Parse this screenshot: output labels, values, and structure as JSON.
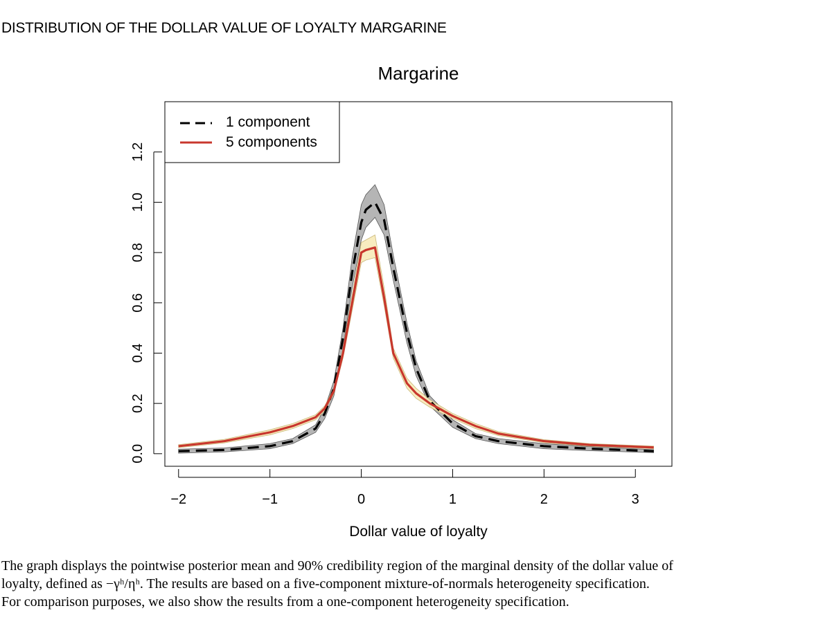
{
  "figure": {
    "heading": "DISTRIBUTION OF THE DOLLAR VALUE OF LOYALTY MARGARINE"
  },
  "caption": {
    "line1": "The graph displays the pointwise posterior mean and 90% credibility region of the marginal density of the dollar value of",
    "line2": "loyalty, defined as −γʰ/ηʰ. The results are based on a five-component mixture-of-normals heterogeneity specification.",
    "line3": "For comparison purposes, we also show the results from a one-component heterogeneity specification."
  },
  "colors": {
    "one_component_line": "#000000",
    "one_component_band": "#a8a8a8",
    "five_component_line": "#c8372d",
    "five_component_band": "#f7eab8"
  },
  "chart_data": {
    "type": "line",
    "title": "Margarine",
    "xlabel": "Dollar value of loyalty",
    "ylabel": "",
    "xlim": [
      -2.15,
      3.4
    ],
    "ylim": [
      -0.05,
      1.4
    ],
    "x_ticks": [
      -2,
      -1,
      0,
      1,
      2,
      3
    ],
    "x_tick_labels": [
      "−2",
      "−1",
      "0",
      "1",
      "2",
      "3"
    ],
    "y_ticks": [
      0.0,
      0.2,
      0.4,
      0.6,
      0.8,
      1.0,
      1.2
    ],
    "y_tick_labels": [
      "0.0",
      "0.2",
      "0.4",
      "0.6",
      "0.8",
      "1.0",
      "1.2"
    ],
    "legend_position": "top-left",
    "grid": false,
    "x": [
      -2.0,
      -1.5,
      -1.0,
      -0.75,
      -0.5,
      -0.4,
      -0.3,
      -0.2,
      -0.1,
      0.0,
      0.05,
      0.15,
      0.25,
      0.35,
      0.5,
      0.6,
      0.75,
      1.0,
      1.25,
      1.5,
      2.0,
      2.5,
      3.2
    ],
    "series": [
      {
        "name": "1 component",
        "style": "dashed",
        "values": [
          0.01,
          0.015,
          0.03,
          0.05,
          0.1,
          0.16,
          0.26,
          0.46,
          0.72,
          0.92,
          0.97,
          1.0,
          0.93,
          0.74,
          0.48,
          0.34,
          0.21,
          0.12,
          0.07,
          0.05,
          0.03,
          0.02,
          0.01
        ],
        "band_lower": [
          0.002,
          0.007,
          0.02,
          0.04,
          0.085,
          0.14,
          0.23,
          0.42,
          0.66,
          0.85,
          0.9,
          0.94,
          0.87,
          0.69,
          0.44,
          0.31,
          0.19,
          0.105,
          0.06,
          0.04,
          0.02,
          0.012,
          0.004
        ],
        "band_upper": [
          0.018,
          0.023,
          0.04,
          0.06,
          0.115,
          0.18,
          0.29,
          0.5,
          0.78,
          0.99,
          1.03,
          1.07,
          0.99,
          0.79,
          0.52,
          0.37,
          0.23,
          0.135,
          0.08,
          0.06,
          0.04,
          0.028,
          0.016
        ]
      },
      {
        "name": "5 components",
        "style": "solid",
        "values": [
          0.03,
          0.05,
          0.085,
          0.11,
          0.145,
          0.18,
          0.25,
          0.4,
          0.6,
          0.8,
          0.81,
          0.82,
          0.62,
          0.4,
          0.28,
          0.24,
          0.2,
          0.15,
          0.11,
          0.08,
          0.05,
          0.035,
          0.025
        ],
        "band_lower": [
          0.024,
          0.043,
          0.075,
          0.1,
          0.135,
          0.17,
          0.24,
          0.38,
          0.57,
          0.76,
          0.77,
          0.78,
          0.59,
          0.38,
          0.26,
          0.22,
          0.185,
          0.14,
          0.1,
          0.072,
          0.044,
          0.03,
          0.02
        ],
        "band_upper": [
          0.036,
          0.057,
          0.095,
          0.12,
          0.155,
          0.19,
          0.26,
          0.42,
          0.63,
          0.84,
          0.85,
          0.87,
          0.66,
          0.42,
          0.3,
          0.26,
          0.215,
          0.16,
          0.12,
          0.088,
          0.056,
          0.04,
          0.03
        ]
      }
    ]
  }
}
